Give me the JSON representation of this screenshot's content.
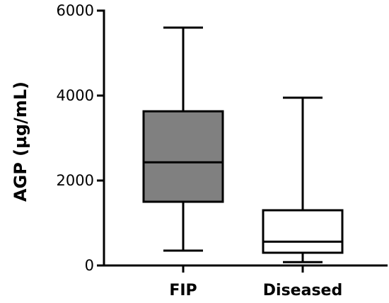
{
  "chart_data": {
    "type": "boxplot",
    "ylabel": "AGP (µg/mL)",
    "ylim": [
      0,
      6000
    ],
    "yticks": [
      0,
      2000,
      4000,
      6000
    ],
    "ytick_labels": [
      "0",
      "2000",
      "4000",
      "6000"
    ],
    "grid": false,
    "legend": "none",
    "categories": [
      "FIP",
      "Diseased"
    ],
    "boxes": [
      {
        "category": "FIP",
        "min": 350,
        "q1": 1500,
        "median": 2430,
        "q3": 3630,
        "max": 5600,
        "fill": "#808080"
      },
      {
        "category": "Diseased",
        "min": 80,
        "q1": 300,
        "median": 560,
        "q3": 1300,
        "max": 3950,
        "fill": "#ffffff"
      }
    ]
  },
  "colors": {
    "axis": "#000000",
    "box_stroke": "#000000"
  }
}
